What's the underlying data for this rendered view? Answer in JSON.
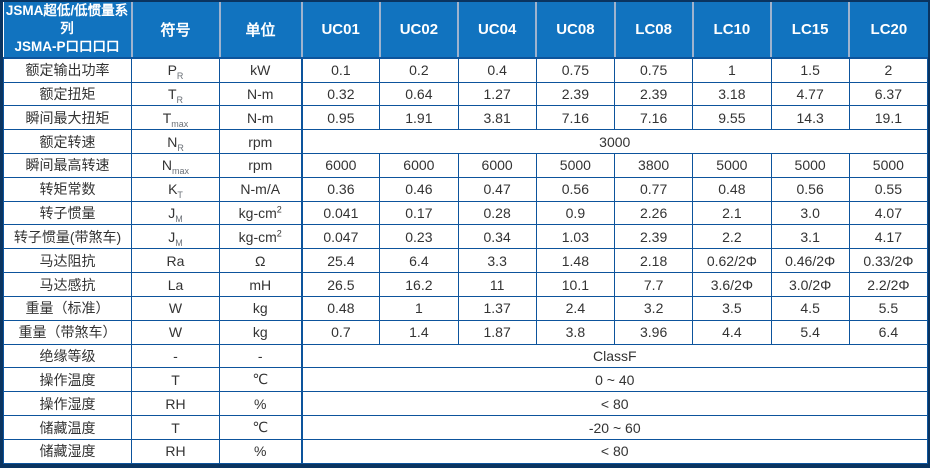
{
  "colors": {
    "header_bg": "#1173BF",
    "header_text": "#FFFFFF",
    "grid": "#0D549C",
    "border": "#0A3460",
    "separator": "#9FB3CE",
    "text": "#333333"
  },
  "table": {
    "header": {
      "title_line1": "JSMA超低/低惯量系列",
      "title_line2": "JSMA-P口口口口",
      "symbol_col": "符号",
      "unit_col": "单位",
      "models": [
        "UC01",
        "UC02",
        "UC04",
        "UC08",
        "LC08",
        "LC10",
        "LC15",
        "LC20"
      ]
    },
    "rows": [
      {
        "param": "额定输出功率",
        "sym": "P",
        "sym_sub": "R",
        "unit": "kW",
        "values": [
          "0.1",
          "0.2",
          "0.4",
          "0.75",
          "0.75",
          "1",
          "1.5",
          "2"
        ]
      },
      {
        "param": "额定扭矩",
        "sym": "T",
        "sym_sub": "R",
        "unit": "N-m",
        "values": [
          "0.32",
          "0.64",
          "1.27",
          "2.39",
          "2.39",
          "3.18",
          "4.77",
          "6.37"
        ]
      },
      {
        "param": "瞬间最大扭矩",
        "sym": "T",
        "sym_sub": "max",
        "unit": "N-m",
        "values": [
          "0.95",
          "1.91",
          "3.81",
          "7.16",
          "7.16",
          "9.55",
          "14.3",
          "19.1"
        ]
      },
      {
        "param": "额定转速",
        "sym": "N",
        "sym_sub": "R",
        "unit": "rpm",
        "merged_value": "3000"
      },
      {
        "param": "瞬间最高转速",
        "sym": "N",
        "sym_sub": "max",
        "unit": "rpm",
        "values": [
          "6000",
          "6000",
          "6000",
          "5000",
          "3800",
          "5000",
          "5000",
          "5000"
        ]
      },
      {
        "param": "转矩常数",
        "sym": "K",
        "sym_sub": "T",
        "unit": "N-m/A",
        "values": [
          "0.36",
          "0.46",
          "0.47",
          "0.56",
          "0.77",
          "0.48",
          "0.56",
          "0.55"
        ]
      },
      {
        "param": "转子惯量",
        "sym": "J",
        "sym_sub": "M",
        "unit": "kg-cm",
        "unit_sup": "2",
        "values": [
          "0.041",
          "0.17",
          "0.28",
          "0.9",
          "2.26",
          "2.1",
          "3.0",
          "4.07"
        ]
      },
      {
        "param": "转子惯量(带煞车)",
        "sym": "J",
        "sym_sub": "M",
        "unit": "kg-cm",
        "unit_sup": "2",
        "values": [
          "0.047",
          "0.23",
          "0.34",
          "1.03",
          "2.39",
          "2.2",
          "3.1",
          "4.17"
        ]
      },
      {
        "param": "马达阻抗",
        "sym": "Ra",
        "unit": "Ω",
        "values": [
          "25.4",
          "6.4",
          "3.3",
          "1.48",
          "2.18",
          "0.62/2Φ",
          "0.46/2Φ",
          "0.33/2Φ"
        ]
      },
      {
        "param": "马达感抗",
        "sym": "La",
        "unit": "mH",
        "values": [
          "26.5",
          "16.2",
          "11",
          "10.1",
          "7.7",
          "3.6/2Φ",
          "3.0/2Φ",
          "2.2/2Φ"
        ]
      },
      {
        "param": "重量（标准）",
        "sym": "W",
        "unit": "kg",
        "values": [
          "0.48",
          "1",
          "1.37",
          "2.4",
          "3.2",
          "3.5",
          "4.5",
          "5.5"
        ]
      },
      {
        "param": "重量（带煞车）",
        "sym": "W",
        "unit": "kg",
        "values": [
          "0.7",
          "1.4",
          "1.87",
          "3.8",
          "3.96",
          "4.4",
          "5.4",
          "6.4"
        ]
      },
      {
        "param": "绝缘等级",
        "sym": "-",
        "unit": "-",
        "merged_value": "ClassF"
      },
      {
        "param": "操作温度",
        "sym": "T",
        "unit": "℃",
        "merged_value": "0 ~ 40"
      },
      {
        "param": "操作湿度",
        "sym": "RH",
        "unit": "%",
        "merged_value": "< 80"
      },
      {
        "param": "储藏温度",
        "sym": "T",
        "unit": "℃",
        "merged_value": "-20 ~ 60"
      },
      {
        "param": "储藏湿度",
        "sym": "RH",
        "unit": "%",
        "merged_value": "< 80"
      }
    ]
  }
}
